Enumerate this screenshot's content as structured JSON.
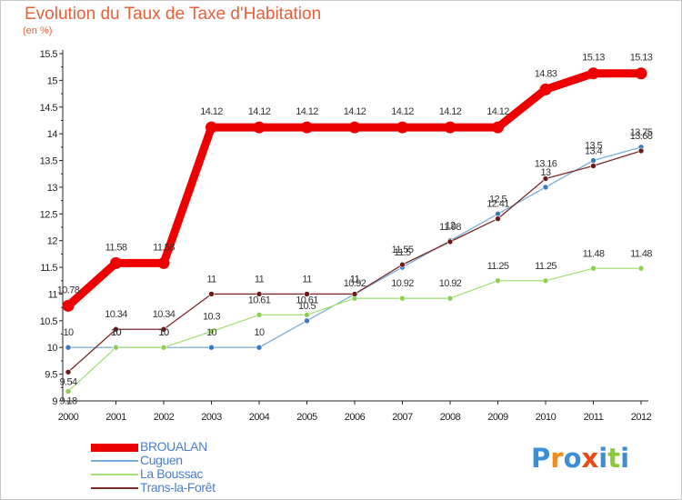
{
  "header": {
    "title": "Evolution du Taux de Taxe d'Habitation",
    "unit": "(en %)"
  },
  "chart_data": {
    "type": "line",
    "title": "Evolution du Taux de Taxe d'Habitation",
    "ylabel": "(en %)",
    "xlabel": "",
    "categories": [
      "2000",
      "2001",
      "2002",
      "2003",
      "2004",
      "2005",
      "2006",
      "2007",
      "2008",
      "2009",
      "2010",
      "2011",
      "2012"
    ],
    "ylim": [
      9,
      15.5
    ],
    "yticks": [
      "9",
      "9.5",
      "10",
      "10.5",
      "11",
      "11.5",
      "12",
      "12.5",
      "13",
      "13.5",
      "14",
      "14.5",
      "15",
      "15.5"
    ],
    "grid": false,
    "legend_position": "bottom-left",
    "series": [
      {
        "name": "BROUALAN",
        "color": "#ee0000",
        "marker": "#ee0000",
        "values": [
          10.78,
          11.58,
          11.58,
          14.12,
          14.12,
          14.12,
          14.12,
          14.12,
          14.12,
          14.12,
          14.83,
          15.13,
          15.13
        ],
        "labels": [
          "10.78",
          "11.58",
          "11.58",
          "14.12",
          "14.12",
          "14.12",
          "14.12",
          "14.12",
          "14.12",
          "14.12",
          "14.83",
          "15.13",
          "15.13"
        ]
      },
      {
        "name": "Cuguen",
        "color": "#7aaed8",
        "marker": "#3a78c0",
        "values": [
          10,
          10,
          10,
          10,
          10,
          10.5,
          11,
          11.5,
          12,
          12.5,
          13,
          13.5,
          13.75
        ],
        "labels": [
          "10",
          "10",
          "10",
          "10",
          "10",
          "10.5",
          "11",
          "11.5",
          "12",
          "12.5",
          "13",
          "13.5",
          "13.75"
        ]
      },
      {
        "name": "La Boussac",
        "color": "#a6e07a",
        "marker": "#8cd050",
        "values": [
          9.18,
          10,
          10,
          10.3,
          10.61,
          10.61,
          10.92,
          10.92,
          10.92,
          11.25,
          11.25,
          11.48,
          11.48
        ],
        "labels": [
          "9.18",
          "10",
          "10",
          "10.3",
          "10.61",
          "10.61",
          "10.92",
          "10.92",
          "10.92",
          "11.25",
          "11.25",
          "11.48",
          "11.48"
        ]
      },
      {
        "name": "Trans-la-Forêt",
        "color": "#7a2a2a",
        "marker": "#6a1a1a",
        "values": [
          9.54,
          10.34,
          10.34,
          11,
          11,
          11,
          11,
          11.55,
          11.98,
          12.41,
          13.16,
          13.4,
          13.68
        ],
        "labels": [
          "9.54",
          "10.34",
          "10.34",
          "11",
          "11",
          "11",
          "11",
          "11.55",
          "11.98",
          "12.41",
          "13.16",
          "13.4",
          "13.68"
        ]
      }
    ]
  },
  "legend": {
    "items": [
      {
        "label": "BROUALAN",
        "color": "#ee0000"
      },
      {
        "label": "Cuguen",
        "color": "#7aaed8"
      },
      {
        "label": "La Boussac",
        "color": "#a6e07a"
      },
      {
        "label": "Trans-la-Forêt",
        "color": "#7a2a2a"
      }
    ]
  },
  "logo": {
    "text": "Proxiti",
    "colors": [
      "#3a8fd8",
      "#f08a1a",
      "#3a8fd8",
      "#e84a1a",
      "#3a8fd8",
      "#8cc83a",
      "#3a8fd8"
    ]
  }
}
